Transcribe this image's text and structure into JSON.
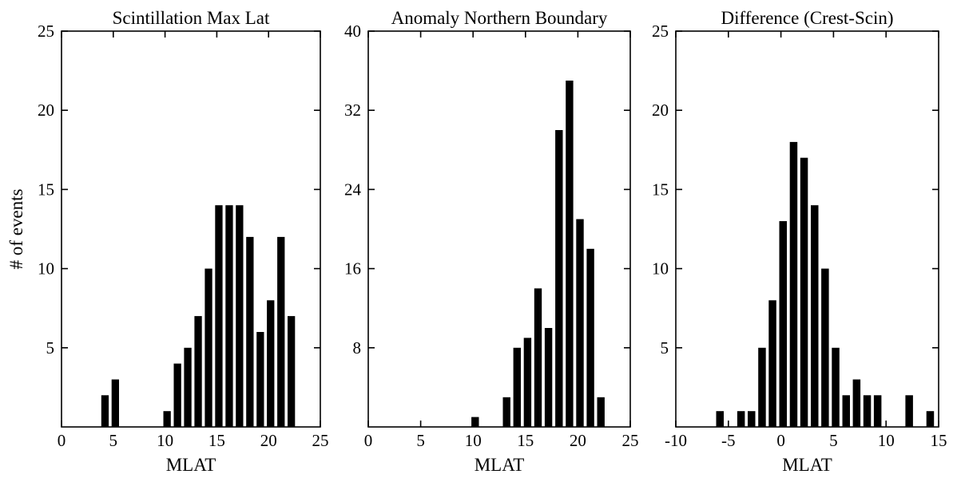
{
  "chart_data": [
    {
      "type": "bar",
      "title": "Scintillation Max Lat",
      "xlabel": "MLAT",
      "ylabel": "# of events",
      "xlim": [
        0,
        25
      ],
      "ylim": [
        0,
        25
      ],
      "xticks": [
        0,
        5,
        10,
        15,
        20,
        25
      ],
      "yticks": [
        5,
        10,
        15,
        20,
        25
      ],
      "grid": false,
      "x": [
        4.2,
        5.2,
        10.2,
        11.2,
        12.2,
        13.2,
        14.2,
        15.2,
        16.2,
        17.2,
        18.2,
        19.2,
        20.2,
        21.2,
        22.2
      ],
      "values": [
        2,
        3,
        1,
        4,
        5,
        7,
        10,
        14,
        14,
        14,
        12,
        6,
        8,
        12,
        7
      ]
    },
    {
      "type": "bar",
      "title": "Anomaly Northern Boundary",
      "xlabel": "MLAT",
      "ylabel": "",
      "xlim": [
        0,
        25
      ],
      "ylim": [
        0,
        40
      ],
      "xticks": [
        0,
        5,
        10,
        15,
        20,
        25
      ],
      "yticks": [
        8,
        16,
        24,
        32,
        40
      ],
      "grid": false,
      "x": [
        10.2,
        13.2,
        14.2,
        15.2,
        16.2,
        17.2,
        18.2,
        19.2,
        20.2,
        21.2,
        22.2
      ],
      "values": [
        1,
        3,
        8,
        9,
        14,
        10,
        30,
        35,
        21,
        18,
        3
      ]
    },
    {
      "type": "bar",
      "title": "Difference (Crest-Scin)",
      "xlabel": "MLAT",
      "ylabel": "",
      "xlim": [
        -10,
        15
      ],
      "ylim": [
        0,
        25
      ],
      "xticks": [
        -10,
        -5,
        0,
        5,
        10,
        15
      ],
      "yticks": [
        5,
        10,
        15,
        20,
        25
      ],
      "grid": false,
      "x": [
        -5.8,
        -3.8,
        -2.8,
        -1.8,
        -0.8,
        0.2,
        1.2,
        2.2,
        3.2,
        4.2,
        5.2,
        6.2,
        7.2,
        8.2,
        9.2,
        12.2,
        14.2
      ],
      "values": [
        1,
        1,
        1,
        5,
        8,
        13,
        18,
        17,
        14,
        10,
        5,
        2,
        3,
        2,
        2,
        2,
        1
      ]
    }
  ]
}
